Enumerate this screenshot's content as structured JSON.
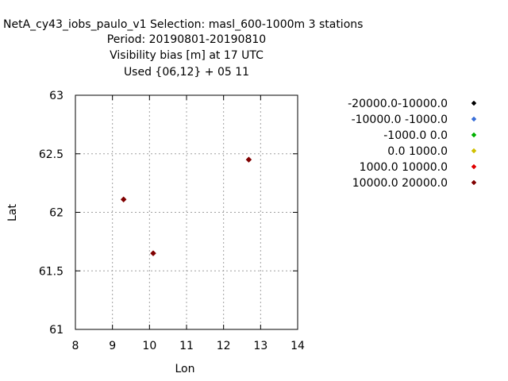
{
  "chart_data": {
    "type": "scatter",
    "title_lines": [
      "NetA_cy43_iobs_paulo_v1   Selection: masl_600-1000m      3 stations",
      "Period: 20190801-20190810",
      "Visibility bias [m] at  17 UTC",
      "Used {06,12} + 05 11"
    ],
    "xlabel": "Lon",
    "ylabel": "Lat",
    "xlim": [
      8,
      14
    ],
    "ylim": [
      61,
      63
    ],
    "xticks": [
      "8",
      "9",
      "10",
      "11",
      "12",
      "13",
      "14"
    ],
    "yticks": [
      "61",
      "61.5",
      "62",
      "62.5",
      "63"
    ],
    "grid": true,
    "legend_position": "right",
    "series": [
      {
        "name": "-20000.0-10000.0",
        "color": "#000000",
        "points": []
      },
      {
        "name": "-10000.0 -1000.0",
        "color": "#3a6fd8",
        "points": []
      },
      {
        "name": "-1000.0 0.0",
        "color": "#00b000",
        "points": []
      },
      {
        "name": "0.0 1000.0",
        "color": "#d0c000",
        "points": []
      },
      {
        "name": "1000.0 10000.0",
        "color": "#e00000",
        "points": []
      },
      {
        "name": "10000.0 20000.0",
        "color": "#800000",
        "points": [
          {
            "x": 9.3,
            "y": 62.11
          },
          {
            "x": 10.1,
            "y": 61.65
          },
          {
            "x": 12.68,
            "y": 62.45
          }
        ]
      }
    ]
  }
}
